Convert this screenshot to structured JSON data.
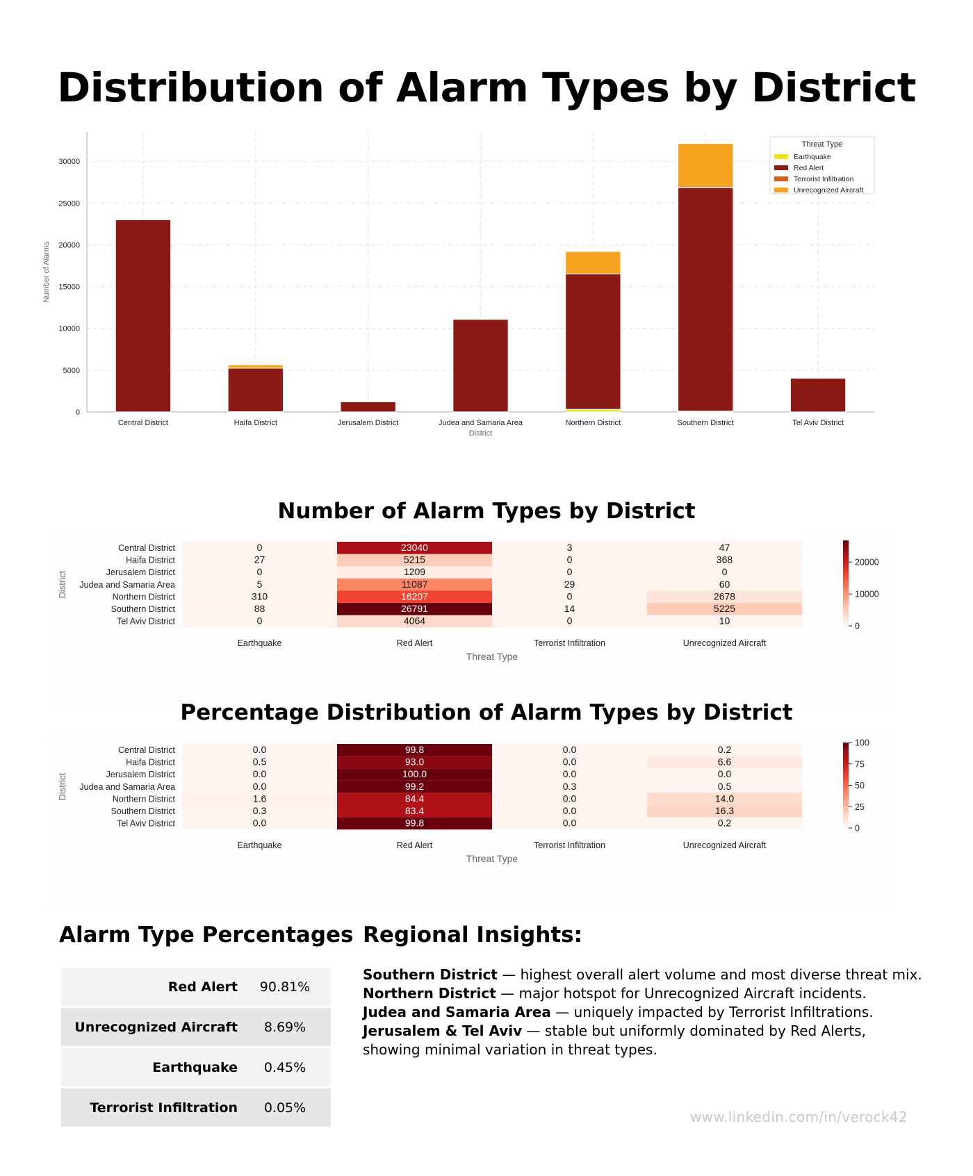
{
  "title": "Distribution of Alarm Types by District",
  "chart_data": [
    {
      "type": "bar",
      "stacked": true,
      "categories": [
        "Central District",
        "Haifa District",
        "Jerusalem District",
        "Judea and Samaria Area",
        "Northern District",
        "Southern District",
        "Tel Aviv District"
      ],
      "series": [
        {
          "name": "Earthquake",
          "color": "#ede21e",
          "values": [
            0,
            27,
            0,
            5,
            310,
            88,
            0
          ]
        },
        {
          "name": "Red Alert",
          "color": "#8b1a14",
          "values": [
            23040,
            5215,
            1209,
            11087,
            16207,
            26791,
            4064
          ]
        },
        {
          "name": "Terrorist Infiltration",
          "color": "#d2601a",
          "values": [
            3,
            0,
            0,
            29,
            0,
            14,
            0
          ]
        },
        {
          "name": "Unrecognized Aircraft",
          "color": "#f5a31e",
          "values": [
            47,
            368,
            0,
            60,
            2678,
            5225,
            10
          ]
        }
      ],
      "xlabel": "District",
      "ylabel": "Number of Alarms",
      "yticks": [
        0,
        5000,
        10000,
        15000,
        20000,
        25000,
        30000
      ],
      "ylim": [
        0,
        33500
      ],
      "grid": true,
      "legend": {
        "title": "Threat Type",
        "position": "top-right"
      }
    },
    {
      "type": "heatmap",
      "title": "Number of Alarm Types by District",
      "rows": [
        "Central District",
        "Haifa District",
        "Jerusalem District",
        "Judea and Samaria Area",
        "Northern District",
        "Southern District",
        "Tel Aviv District"
      ],
      "columns": [
        "Earthquake",
        "Red Alert",
        "Terrorist Infiltration",
        "Unrecognized Aircraft"
      ],
      "values": [
        [
          0,
          23040,
          3,
          47
        ],
        [
          27,
          5215,
          0,
          368
        ],
        [
          0,
          1209,
          0,
          0
        ],
        [
          5,
          11087,
          29,
          60
        ],
        [
          310,
          16207,
          0,
          2678
        ],
        [
          88,
          26791,
          14,
          5225
        ],
        [
          0,
          4064,
          0,
          10
        ]
      ],
      "labels": [
        [
          "0",
          "23040",
          "3",
          "47"
        ],
        [
          "27",
          "5215",
          "0",
          "368"
        ],
        [
          "0",
          "1209",
          "0",
          "0"
        ],
        [
          "5",
          "11087",
          "29",
          "60"
        ],
        [
          "310",
          "16207",
          "0",
          "2678"
        ],
        [
          "88",
          "26791",
          "14",
          "5225"
        ],
        [
          "0",
          "4064",
          "0",
          "10"
        ]
      ],
      "xlabel": "Threat Type",
      "ylabel": "District",
      "vmin": 0,
      "vmax": 26791,
      "colorbar_ticks": [
        0,
        10000,
        20000
      ],
      "colormap": "Reds"
    },
    {
      "type": "heatmap",
      "title": "Percentage Distribution of Alarm Types by District",
      "rows": [
        "Central District",
        "Haifa District",
        "Jerusalem District",
        "Judea and Samaria Area",
        "Northern District",
        "Southern District",
        "Tel Aviv District"
      ],
      "columns": [
        "Earthquake",
        "Red Alert",
        "Terrorist Infiltration",
        "Unrecognized Aircraft"
      ],
      "values": [
        [
          0.0,
          99.8,
          0.0,
          0.2
        ],
        [
          0.5,
          93.0,
          0.0,
          6.6
        ],
        [
          0.0,
          100.0,
          0.0,
          0.0
        ],
        [
          0.0,
          99.2,
          0.3,
          0.5
        ],
        [
          1.6,
          84.4,
          0.0,
          14.0
        ],
        [
          0.3,
          83.4,
          0.0,
          16.3
        ],
        [
          0.0,
          99.8,
          0.0,
          0.2
        ]
      ],
      "labels": [
        [
          "0.0",
          "99.8",
          "0.0",
          "0.2"
        ],
        [
          "0.5",
          "93.0",
          "0.0",
          "6.6"
        ],
        [
          "0.0",
          "100.0",
          "0.0",
          "0.0"
        ],
        [
          "0.0",
          "99.2",
          "0.3",
          "0.5"
        ],
        [
          "1.6",
          "84.4",
          "0.0",
          "14.0"
        ],
        [
          "0.3",
          "83.4",
          "0.0",
          "16.3"
        ],
        [
          "0.0",
          "99.8",
          "0.0",
          "0.2"
        ]
      ],
      "xlabel": "Threat Type",
      "ylabel": "District",
      "vmin": 0,
      "vmax": 100,
      "colorbar_ticks": [
        0,
        25,
        50,
        75,
        100
      ],
      "colormap": "Reds"
    }
  ],
  "percentages": {
    "title": "Alarm Type Percentages",
    "rows": [
      {
        "label": "Red Alert",
        "value": "90.81%"
      },
      {
        "label": "Unrecognized Aircraft",
        "value": "8.69%"
      },
      {
        "label": "Earthquake",
        "value": "0.45%"
      },
      {
        "label": "Terrorist Infiltration",
        "value": "0.05%"
      }
    ]
  },
  "insights": {
    "title": "Regional Insights:",
    "items": [
      {
        "bold": "Southern District",
        "text": " — highest overall alert volume and most diverse threat mix."
      },
      {
        "bold": "Northern District",
        "text": " — major hotspot for Unrecognized Aircraft incidents."
      },
      {
        "bold": "Judea and Samaria Area",
        "text": " — uniquely impacted by Terrorist Infiltrations."
      },
      {
        "bold": "Jerusalem & Tel Aviv",
        "text": " — stable but uniformly dominated by Red Alerts,"
      },
      {
        "bold": "",
        "text": "showing minimal variation in threat types."
      }
    ]
  },
  "credit": "www.linkedin.com/in/verock42"
}
